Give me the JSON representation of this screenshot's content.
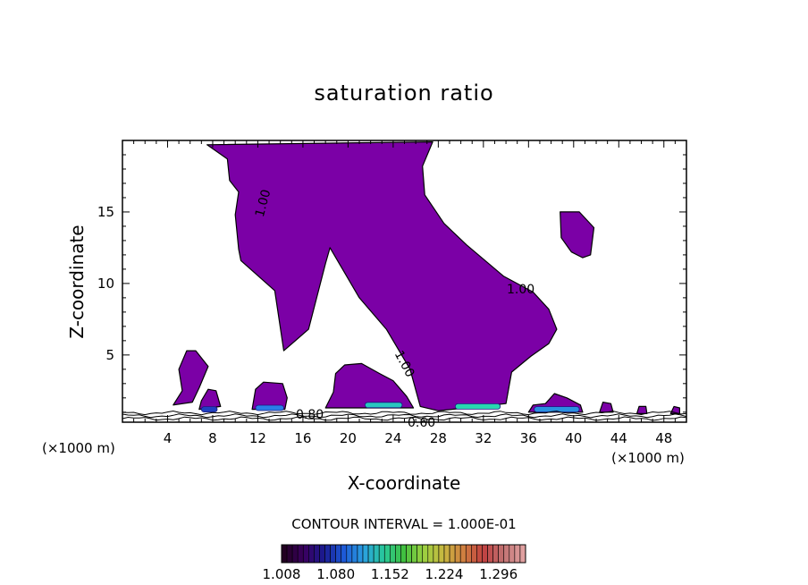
{
  "chart_data": {
    "type": "heatmap",
    "title": "saturation ratio",
    "xlabel": "X-coordinate",
    "ylabel": "Z-coordinate",
    "x_unit": "(×1000 m)",
    "xlim": [
      0,
      50
    ],
    "ylim": [
      0.3,
      20
    ],
    "x_ticks": [
      4,
      8,
      12,
      16,
      20,
      24,
      28,
      32,
      36,
      40,
      44,
      48
    ],
    "y_ticks": [
      5,
      10,
      15
    ],
    "contour_interval_label": "CONTOUR INTERVAL = 1.000E-01",
    "colorbar": {
      "min": 1.008,
      "max": 1.332,
      "tick_labels": [
        "1.008",
        "1.080",
        "1.152",
        "1.224",
        "1.296"
      ],
      "colors": [
        "#220022",
        "#3a0060",
        "#1a1a90",
        "#1d5ad8",
        "#2aa0e0",
        "#28c89a",
        "#40c040",
        "#9ad040",
        "#c8b840",
        "#d08040",
        "#c04040",
        "#c07070",
        "#e0a0a0"
      ]
    },
    "fill_color": "#7b00a6",
    "contour_labels": [
      "1.00",
      "1.00",
      "1.00",
      "0.80",
      "0.60"
    ],
    "regions": [
      {
        "name": "main-cloud",
        "poly": [
          [
            7.5,
            19.7
          ],
          [
            27.5,
            19.9
          ],
          [
            26.6,
            18.2
          ],
          [
            26.8,
            16.2
          ],
          [
            28.5,
            14.2
          ],
          [
            30.5,
            12.7
          ],
          [
            33.8,
            10.5
          ],
          [
            36.4,
            9.4
          ],
          [
            37.8,
            8.2
          ],
          [
            38.5,
            6.8
          ],
          [
            37.8,
            5.8
          ],
          [
            36.2,
            4.9
          ],
          [
            34.5,
            3.8
          ],
          [
            34.0,
            1.6
          ],
          [
            28.0,
            1.1
          ],
          [
            26.4,
            1.4
          ],
          [
            25.5,
            4.0
          ],
          [
            24.3,
            5.6
          ],
          [
            23.4,
            6.8
          ],
          [
            21.0,
            9.0
          ],
          [
            18.4,
            12.5
          ],
          [
            18.0,
            11.4
          ],
          [
            16.5,
            6.8
          ],
          [
            14.3,
            5.3
          ],
          [
            13.5,
            9.5
          ],
          [
            10.5,
            11.6
          ],
          [
            10.3,
            12.4
          ],
          [
            10.0,
            14.8
          ],
          [
            10.3,
            16.4
          ],
          [
            9.5,
            17.2
          ],
          [
            9.3,
            18.7
          ]
        ]
      },
      {
        "name": "right-cloud",
        "poly": [
          [
            38.8,
            15.0
          ],
          [
            40.5,
            15.0
          ],
          [
            41.8,
            13.9
          ],
          [
            41.5,
            12.0
          ],
          [
            40.8,
            11.8
          ],
          [
            39.8,
            12.2
          ],
          [
            38.9,
            13.2
          ]
        ]
      },
      {
        "name": "left-cloud",
        "poly": [
          [
            4.5,
            1.5
          ],
          [
            5.3,
            2.5
          ],
          [
            5.0,
            4.0
          ],
          [
            5.7,
            5.3
          ],
          [
            6.5,
            5.3
          ],
          [
            7.6,
            4.2
          ],
          [
            6.8,
            2.7
          ],
          [
            6.2,
            1.7
          ]
        ]
      },
      {
        "name": "small-cloud-8",
        "poly": [
          [
            6.8,
            1.2
          ],
          [
            7.0,
            1.8
          ],
          [
            7.6,
            2.6
          ],
          [
            8.3,
            2.5
          ],
          [
            8.7,
            1.4
          ]
        ]
      },
      {
        "name": "cloud-13",
        "poly": [
          [
            11.5,
            1.2
          ],
          [
            11.8,
            2.6
          ],
          [
            12.5,
            3.1
          ],
          [
            14.2,
            3.0
          ],
          [
            14.6,
            2.0
          ],
          [
            14.4,
            1.2
          ]
        ]
      },
      {
        "name": "cloud-21",
        "poly": [
          [
            18.0,
            1.3
          ],
          [
            18.7,
            2.4
          ],
          [
            18.9,
            3.7
          ],
          [
            19.7,
            4.3
          ],
          [
            21.2,
            4.4
          ],
          [
            22.8,
            3.7
          ],
          [
            24.0,
            3.2
          ],
          [
            25.2,
            2.1
          ],
          [
            25.8,
            1.3
          ]
        ]
      },
      {
        "name": "cloud-38",
        "poly": [
          [
            36.0,
            1.0
          ],
          [
            36.4,
            1.5
          ],
          [
            37.5,
            1.6
          ],
          [
            38.3,
            2.3
          ],
          [
            39.4,
            2.0
          ],
          [
            40.6,
            1.5
          ],
          [
            40.8,
            1.0
          ]
        ]
      },
      {
        "name": "cloud-43",
        "poly": [
          [
            42.3,
            1.0
          ],
          [
            42.6,
            1.7
          ],
          [
            43.3,
            1.6
          ],
          [
            43.5,
            1.0
          ]
        ]
      },
      {
        "name": "cloud-46",
        "poly": [
          [
            45.6,
            0.9
          ],
          [
            45.8,
            1.4
          ],
          [
            46.4,
            1.4
          ],
          [
            46.5,
            0.9
          ]
        ]
      },
      {
        "name": "cloud-49",
        "poly": [
          [
            48.6,
            0.9
          ],
          [
            48.9,
            1.4
          ],
          [
            49.4,
            1.3
          ],
          [
            49.4,
            0.9
          ]
        ]
      }
    ],
    "highlights": [
      {
        "name": "blue-band-13",
        "x": [
          11.8,
          14.3
        ],
        "y": 1.3,
        "color": "#2a7de8"
      },
      {
        "name": "cyan-band-21",
        "x": [
          21.5,
          24.8
        ],
        "y": 1.5,
        "color": "#28c8c0"
      },
      {
        "name": "cyan-band-31",
        "x": [
          29.5,
          33.5
        ],
        "y": 1.4,
        "color": "#28d8b0"
      },
      {
        "name": "blue-band-38",
        "x": [
          36.5,
          40.5
        ],
        "y": 1.2,
        "color": "#2a90e0"
      },
      {
        "name": "blue-band-8",
        "x": [
          7.0,
          8.4
        ],
        "y": 1.2,
        "color": "#2040c0"
      }
    ]
  }
}
